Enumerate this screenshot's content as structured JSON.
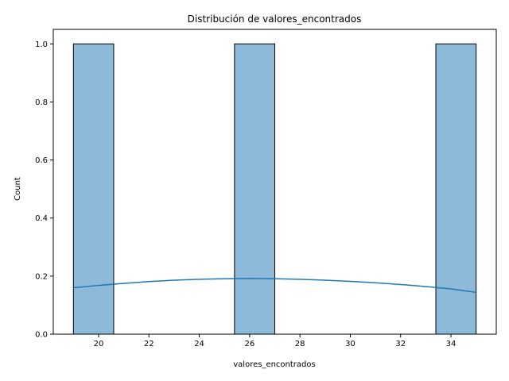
{
  "chart_data": {
    "type": "bar",
    "title": "Distribución de valores_encontrados",
    "xlabel": "valores_encontrados",
    "ylabel": "Count",
    "xlim": [
      18.2,
      35.8
    ],
    "ylim": [
      0,
      1.05
    ],
    "x_ticks": [
      20,
      22,
      24,
      26,
      28,
      30,
      32,
      34
    ],
    "x_tick_labels": [
      "20",
      "22",
      "24",
      "26",
      "28",
      "30",
      "32",
      "34"
    ],
    "y_ticks": [
      0.0,
      0.2,
      0.4,
      0.6,
      0.8,
      1.0
    ],
    "y_tick_labels": [
      "0.0",
      "0.2",
      "0.4",
      "0.6",
      "0.8",
      "1.0"
    ],
    "bins": [
      {
        "start": 19.0,
        "end": 20.6,
        "count": 1
      },
      {
        "start": 20.6,
        "end": 22.2,
        "count": 0
      },
      {
        "start": 22.2,
        "end": 23.8,
        "count": 0
      },
      {
        "start": 23.8,
        "end": 25.4,
        "count": 0
      },
      {
        "start": 25.4,
        "end": 27.0,
        "count": 1
      },
      {
        "start": 27.0,
        "end": 28.6,
        "count": 0
      },
      {
        "start": 28.6,
        "end": 30.2,
        "count": 0
      },
      {
        "start": 30.2,
        "end": 31.8,
        "count": 0
      },
      {
        "start": 31.8,
        "end": 33.4,
        "count": 0
      },
      {
        "start": 33.4,
        "end": 35.0,
        "count": 1
      }
    ],
    "kde": {
      "x": [
        19,
        20,
        21,
        22,
        23,
        24,
        25,
        26,
        27,
        28,
        29,
        30,
        31,
        32,
        33,
        34,
        35
      ],
      "y": [
        0.16,
        0.168,
        0.175,
        0.181,
        0.186,
        0.189,
        0.191,
        0.192,
        0.191,
        0.189,
        0.186,
        0.182,
        0.177,
        0.171,
        0.164,
        0.156,
        0.144
      ]
    },
    "colors": {
      "bar_fill": "#8ebad9",
      "bar_edge": "#000000",
      "kde_line": "#1f77b4"
    },
    "grid": false,
    "legend": "none"
  }
}
